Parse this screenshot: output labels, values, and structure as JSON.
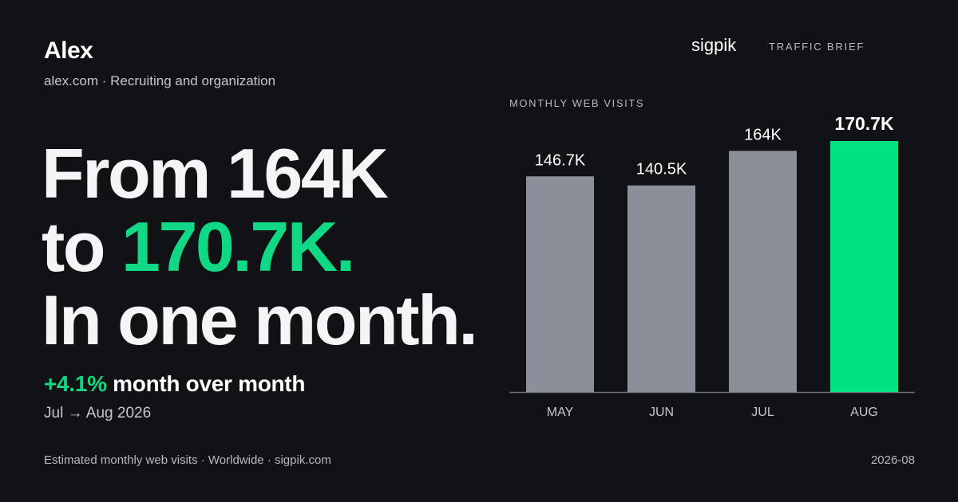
{
  "company": {
    "name": "Alex",
    "domain_line": "alex.com · Recruiting and organization"
  },
  "headline": {
    "line1": "From 164K",
    "line2_prefix": "to ",
    "line2_value": "170.7K.",
    "line3": "In one month."
  },
  "growth": {
    "percent": "+4.1%",
    "text": " month over month",
    "period": "Jul → Aug 2026"
  },
  "brand": {
    "name": "sigpik",
    "tag": "TRAFFIC BRIEF"
  },
  "footer": {
    "source": "Estimated monthly web visits · Worldwide · sigpik.com",
    "date": "2026-08"
  },
  "colors": {
    "background": "#101215",
    "accent": "#10d884",
    "bar": "#8a8f99",
    "highlight_bar": "#00e283",
    "axis": "#6b7079"
  },
  "chart_data": {
    "type": "bar",
    "title": "MONTHLY WEB VISITS",
    "categories": [
      "MAY",
      "JUN",
      "JUL",
      "AUG"
    ],
    "values": [
      146.7,
      140.5,
      164,
      170.7
    ],
    "value_labels": [
      "146.7K",
      "140.5K",
      "164K",
      "170.7K"
    ],
    "unit": "K visits",
    "highlight_index": 3,
    "ylim": [
      0,
      180
    ],
    "grid": false,
    "legend": "none"
  }
}
